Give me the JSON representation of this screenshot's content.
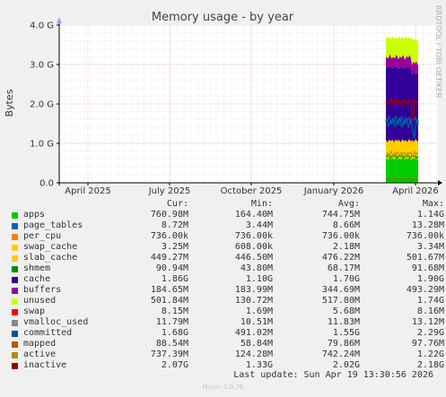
{
  "chart_data": {
    "type": "area",
    "title": "Memory usage - by year",
    "ylabel": "Bytes",
    "xlabel": "",
    "watermark": "RRDTOOL / TOBI OETIKER",
    "y_ticks": [
      "0.0",
      "1.0 G",
      "2.0 G",
      "3.0 G",
      "4.0 G"
    ],
    "ylim": [
      0,
      4.0
    ],
    "y_unit": "G",
    "x_ticks": [
      "April 2025",
      "July 2025",
      "October 2025",
      "January 2026",
      "April 2026"
    ],
    "grid": true,
    "colors": {
      "apps": "#00cc00",
      "page_tables": "#0066b3",
      "per_cpu": "#ff8000",
      "swap_cache": "#ffcc00",
      "slab_cache": "#ffcc00",
      "shmem": "#008f00",
      "cache": "#330099",
      "buffers": "#990099",
      "unused": "#ccff00",
      "swap": "#ff0000",
      "vmalloc_used": "#888888",
      "committed": "#005599",
      "mapped": "#b35a00",
      "active": "#b38f00",
      "inactive": "#990000"
    },
    "stacked_snapshot_G": {
      "apps": 0.76,
      "page_tables": 0.009,
      "per_cpu": 0.0007,
      "swap_cache": 0.003,
      "slab_cache": 0.45,
      "cache": 1.86,
      "buffers": 0.18,
      "unused": 0.5,
      "swap": 0.008
    },
    "lines_snapshot_G": {
      "committed": 1.68,
      "active": 0.74,
      "inactive": 2.07,
      "mapped": 0.089,
      "vmalloc_used": 0.012,
      "shmem": 0.091
    }
  },
  "legend": {
    "headers": [
      "Cur:",
      "Min:",
      "Avg:",
      "Max:"
    ],
    "rows": [
      {
        "name": "apps",
        "color": "#00cc00",
        "cur": "760.98M",
        "min": "164.40M",
        "avg": "744.75M",
        "max": "1.14G"
      },
      {
        "name": "page_tables",
        "color": "#0066b3",
        "cur": "8.72M",
        "min": "3.44M",
        "avg": "8.66M",
        "max": "13.28M"
      },
      {
        "name": "per_cpu",
        "color": "#ff8000",
        "cur": "736.00k",
        "min": "736.00k",
        "avg": "736.00k",
        "max": "736.00k"
      },
      {
        "name": "swap_cache",
        "color": "#ffcc00",
        "cur": "3.25M",
        "min": "608.00k",
        "avg": "2.18M",
        "max": "3.34M"
      },
      {
        "name": "slab_cache",
        "color": "#ffcc00",
        "cur": "449.27M",
        "min": "446.50M",
        "avg": "476.22M",
        "max": "501.67M"
      },
      {
        "name": "shmem",
        "color": "#008f00",
        "cur": "90.94M",
        "min": "43.80M",
        "avg": "68.17M",
        "max": "91.68M"
      },
      {
        "name": "cache",
        "color": "#330099",
        "cur": "1.86G",
        "min": "1.10G",
        "avg": "1.70G",
        "max": "1.90G"
      },
      {
        "name": "buffers",
        "color": "#990099",
        "cur": "184.65M",
        "min": "183.99M",
        "avg": "344.69M",
        "max": "493.29M"
      },
      {
        "name": "unused",
        "color": "#ccff00",
        "cur": "501.84M",
        "min": "130.72M",
        "avg": "517.80M",
        "max": "1.74G"
      },
      {
        "name": "swap",
        "color": "#ff0000",
        "cur": "8.15M",
        "min": "1.69M",
        "avg": "5.68M",
        "max": "8.16M"
      },
      {
        "name": "vmalloc_used",
        "color": "#888888",
        "cur": "11.79M",
        "min": "10.51M",
        "avg": "11.83M",
        "max": "13.12M"
      },
      {
        "name": "committed",
        "color": "#005599",
        "cur": "1.68G",
        "min": "491.02M",
        "avg": "1.55G",
        "max": "2.29G"
      },
      {
        "name": "mapped",
        "color": "#b35a00",
        "cur": "88.54M",
        "min": "58.84M",
        "avg": "79.86M",
        "max": "97.76M"
      },
      {
        "name": "active",
        "color": "#b38f00",
        "cur": "737.39M",
        "min": "124.28M",
        "avg": "742.24M",
        "max": "1.22G"
      },
      {
        "name": "inactive",
        "color": "#990000",
        "cur": "2.07G",
        "min": "1.33G",
        "avg": "2.02G",
        "max": "2.18G"
      }
    ]
  },
  "last_update": "Last update: Sun Apr 19 13:30:56 2026",
  "munin_version": "Munin 2.0.76"
}
